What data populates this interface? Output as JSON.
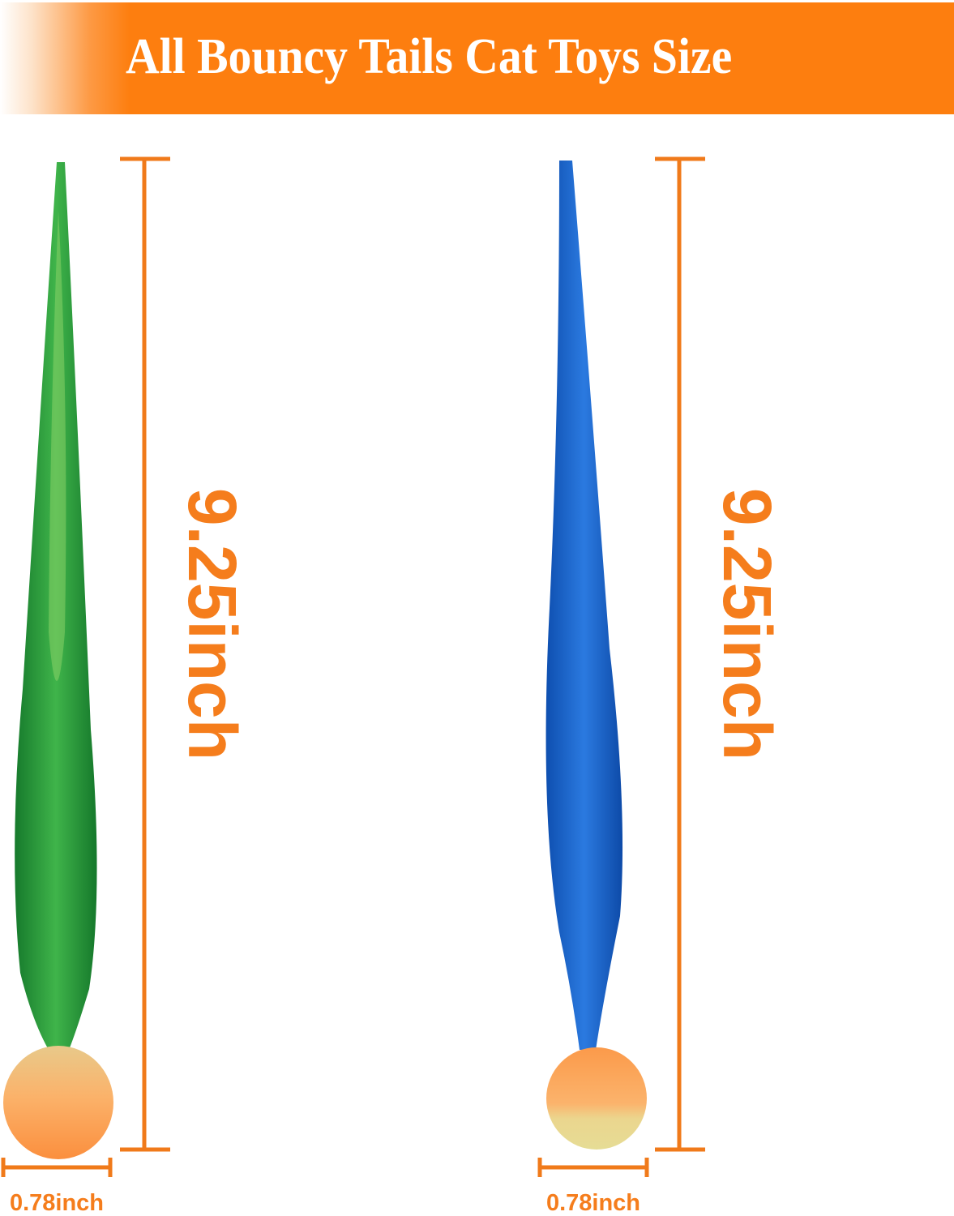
{
  "header": {
    "title": "All Bouncy Tails Cat Toys Size"
  },
  "toys": [
    {
      "color": "green",
      "length_label": "9.25inch",
      "ball_width_label": "0.78inch"
    },
    {
      "color": "blue",
      "length_label": "9.25inch",
      "ball_width_label": "0.78inch"
    }
  ],
  "colors": {
    "accent": "#fd7e0f",
    "text_accent": "#f57d1c",
    "green_tail": "#1f9a3a",
    "blue_tail": "#1e63c8",
    "ball": "#fba05a"
  }
}
